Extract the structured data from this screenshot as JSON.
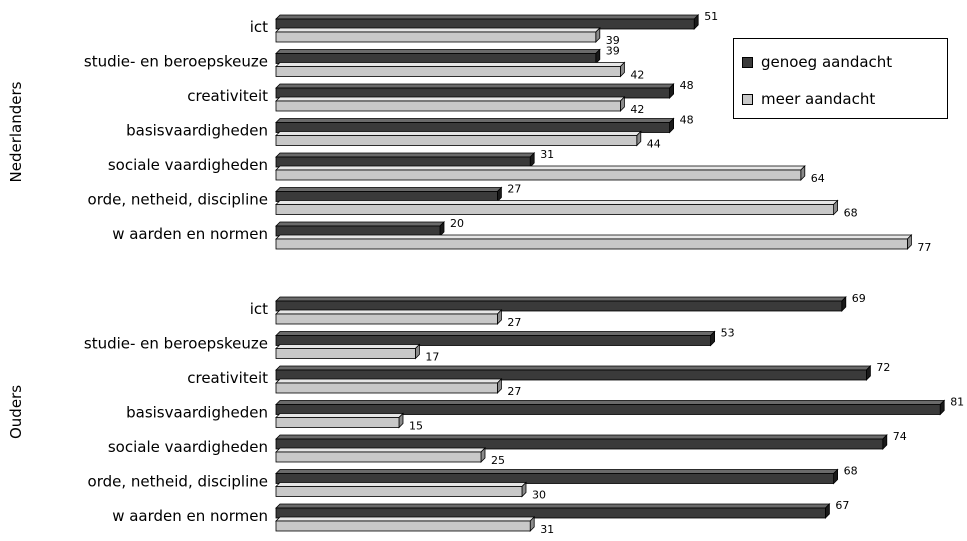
{
  "chart_data": {
    "type": "bar",
    "orientation": "horizontal",
    "style": "3d",
    "xlim": [
      0,
      84
    ],
    "grid": false,
    "legend_position": "top-right",
    "legend": [
      {
        "name": "genoeg aandacht",
        "color": "#3a3a3a"
      },
      {
        "name": "meer aandacht",
        "color": "#c8c8c8"
      }
    ],
    "groups": [
      {
        "name": "Nederlanders",
        "categories": [
          "ict",
          "studie- en beroepskeuze",
          "creativiteit",
          "basisvaardigheden",
          "sociale vaardigheden",
          "orde, netheid, discipline",
          "w aarden en normen"
        ],
        "series": [
          {
            "name": "genoeg aandacht",
            "values": [
              51,
              39,
              48,
              48,
              31,
              27,
              20
            ]
          },
          {
            "name": "meer aandacht",
            "values": [
              39,
              42,
              42,
              44,
              64,
              68,
              77
            ]
          }
        ]
      },
      {
        "name": "Ouders",
        "categories": [
          "ict",
          "studie- en beroepskeuze",
          "creativiteit",
          "basisvaardigheden",
          "sociale vaardigheden",
          "orde, netheid, discipline",
          "w aarden en normen"
        ],
        "series": [
          {
            "name": "genoeg aandacht",
            "values": [
              69,
              53,
              72,
              81,
              74,
              68,
              67
            ]
          },
          {
            "name": "meer aandacht",
            "values": [
              27,
              17,
              27,
              15,
              25,
              30,
              31
            ]
          }
        ]
      }
    ]
  }
}
